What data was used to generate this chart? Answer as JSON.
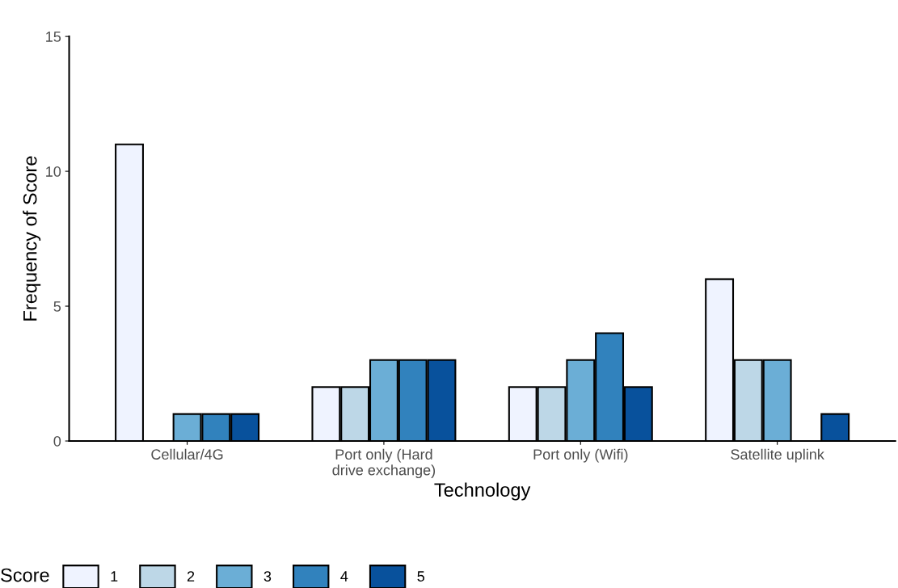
{
  "chart_data": {
    "type": "bar",
    "xlabel": "Technology",
    "ylabel": "Frequency of Score",
    "legend_title": "Score",
    "categories": [
      "Cellular/4G",
      "Port only (Hard\ndrive exchange)",
      "Port only (Wifi)",
      "Satellite uplink"
    ],
    "series": [
      {
        "name": "1",
        "color": "#eff3ff",
        "values": [
          11,
          2,
          2,
          6
        ]
      },
      {
        "name": "2",
        "color": "#bdd7e7",
        "values": [
          null,
          2,
          2,
          3
        ]
      },
      {
        "name": "3",
        "color": "#6baed6",
        "values": [
          1,
          3,
          3,
          3
        ]
      },
      {
        "name": "4",
        "color": "#3182bd",
        "values": [
          1,
          3,
          4,
          null
        ]
      },
      {
        "name": "5",
        "color": "#08519c",
        "values": [
          1,
          3,
          2,
          1
        ]
      }
    ],
    "ylim": [
      0,
      15
    ],
    "yticks": [
      0,
      5,
      10,
      15
    ],
    "grid": false,
    "legend": "bottom"
  }
}
